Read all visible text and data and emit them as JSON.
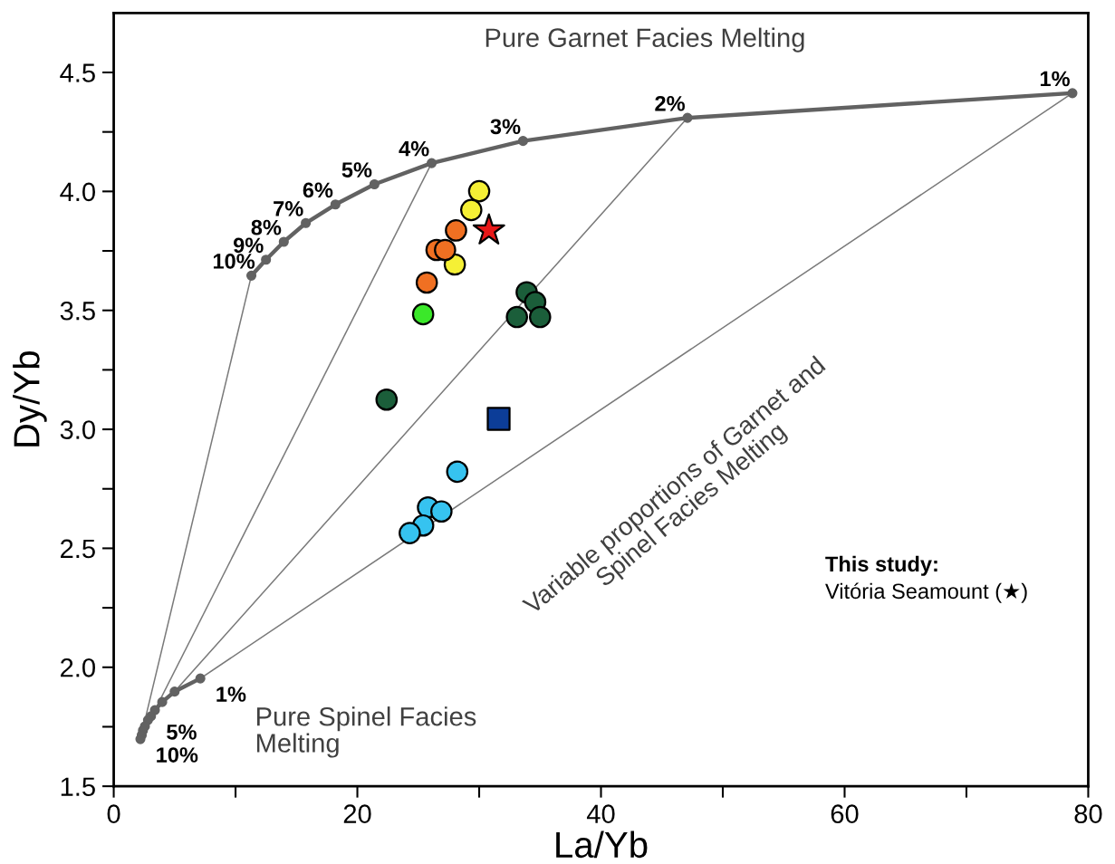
{
  "chart_data": {
    "type": "scatter",
    "xlabel": "La/Yb",
    "ylabel": "Dy/Yb",
    "xlim": [
      0,
      80
    ],
    "ylim": [
      1.5,
      4.75
    ],
    "xticks": [
      0,
      {
        "value": 10,
        "label": null
      },
      20,
      {
        "value": 30,
        "label": null
      },
      40,
      {
        "value": 50,
        "label": null
      },
      60,
      {
        "value": 70,
        "label": null
      },
      80
    ],
    "yticks": [
      1.5,
      {
        "value": 1.75,
        "label": null
      },
      {
        "value": 2,
        "label": "2.0"
      },
      {
        "value": 2.25,
        "label": null
      },
      2.5,
      {
        "value": 2.75,
        "label": null
      },
      {
        "value": 3,
        "label": "3.0"
      },
      {
        "value": 3.25,
        "label": null
      },
      3.5,
      {
        "value": 3.75,
        "label": null
      },
      {
        "value": 4,
        "label": "4.0"
      },
      {
        "value": 4.25,
        "label": null
      },
      4.5
    ],
    "grid": false,
    "legend": false,
    "series": [
      {
        "type": "line",
        "color": "#7a7a7a",
        "line_style": "solid",
        "marker": "none",
        "x": [
          2.19,
          11.3
        ],
        "values": [
          1.698,
          3.646
        ]
      },
      {
        "type": "line",
        "color": "#7a7a7a",
        "line_style": "solid",
        "marker": "none",
        "x": [
          3.38,
          26.1
        ],
        "values": [
          1.82,
          4.119
        ]
      },
      {
        "type": "line",
        "color": "#7a7a7a",
        "line_style": "solid",
        "marker": "none",
        "x": [
          5.0,
          47.1
        ],
        "values": [
          1.898,
          4.309
        ]
      },
      {
        "type": "line",
        "color": "#7a7a7a",
        "line_style": "solid",
        "marker": "none",
        "x": [
          7.11,
          78.7
        ],
        "values": [
          1.953,
          4.413
        ]
      },
      {
        "type": "line",
        "color": "#626262",
        "line_style": "solid",
        "marker": "circle",
        "x": [
          78.7,
          47.1,
          33.6,
          26.1,
          21.4,
          18.2,
          15.77,
          13.96,
          12.5,
          11.3
        ],
        "values": [
          4.413,
          4.309,
          4.212,
          4.119,
          4.03,
          3.945,
          3.867,
          3.788,
          3.713,
          3.646
        ]
      },
      {
        "type": "line",
        "color": "#626262",
        "line_style": "solid",
        "marker": "circle",
        "x": [
          7.11,
          5.0,
          3.98,
          3.38,
          3.06,
          2.81,
          2.56,
          2.4,
          2.3,
          2.19
        ],
        "values": [
          1.953,
          1.898,
          1.854,
          1.82,
          1.794,
          1.778,
          1.752,
          1.735,
          1.715,
          1.698
        ]
      },
      {
        "type": "scatter",
        "color": "#f5f035",
        "marker": "circle",
        "x": [
          30.0,
          29.35,
          28.0
        ],
        "values": [
          4.001,
          3.922,
          3.693
        ]
      },
      {
        "type": "scatter",
        "color": "#f07022",
        "marker": "circle",
        "x": [
          28.1,
          26.5,
          27.2,
          25.7
        ],
        "values": [
          3.836,
          3.754,
          3.754,
          3.617
        ]
      },
      {
        "type": "scatter",
        "color": "#3be82a",
        "marker": "circle",
        "x": [
          25.4
        ],
        "values": [
          3.484
        ]
      },
      {
        "type": "scatter",
        "color": "#1b5e3a",
        "marker": "circle",
        "x": [
          33.9,
          34.6,
          33.1,
          35.0,
          22.4
        ],
        "values": [
          3.576,
          3.535,
          3.472,
          3.472,
          3.125
        ]
      },
      {
        "type": "scatter",
        "color": "#0c3d98",
        "marker": "square",
        "x": [
          31.6
        ],
        "values": [
          3.044
        ]
      },
      {
        "type": "scatter",
        "color": "#36c3f0",
        "marker": "circle",
        "x": [
          28.2,
          25.8,
          26.9,
          25.4,
          24.3
        ],
        "values": [
          2.822,
          2.672,
          2.655,
          2.596,
          2.564
        ]
      },
      {
        "type": "scatter",
        "color": "#e81818",
        "marker": "star",
        "x": [
          30.8
        ],
        "values": [
          3.836
        ]
      }
    ],
    "annotations": [
      {
        "text": "1%",
        "x": 78.7,
        "y": 4.413
      },
      {
        "text": "2%",
        "x": 47.1,
        "y": 4.309
      },
      {
        "text": "3%",
        "x": 33.6,
        "y": 4.212
      },
      {
        "text": "4%",
        "x": 26.1,
        "y": 4.119
      },
      {
        "text": "5%",
        "x": 21.4,
        "y": 4.03
      },
      {
        "text": "6%",
        "x": 18.2,
        "y": 3.945
      },
      {
        "text": "7%",
        "x": 15.77,
        "y": 3.867
      },
      {
        "text": "8%",
        "x": 13.96,
        "y": 3.788
      },
      {
        "text": "9%",
        "x": 12.5,
        "y": 3.713
      },
      {
        "text": "10%",
        "x": 11.3,
        "y": 3.646
      },
      {
        "text": "1%",
        "x": 7.11,
        "y": 1.953
      },
      {
        "text": "5%",
        "x": 3.06,
        "y": 1.794
      },
      {
        "text": "10%",
        "x": 2.19,
        "y": 1.698
      },
      "Pure Garnet Facies Melting",
      "Pure Spinel Facies\nMelting",
      "Variable proportions of Garnet and\nSpinel Facies Melting",
      "This study:",
      "Vitória Seamount (★)"
    ]
  }
}
